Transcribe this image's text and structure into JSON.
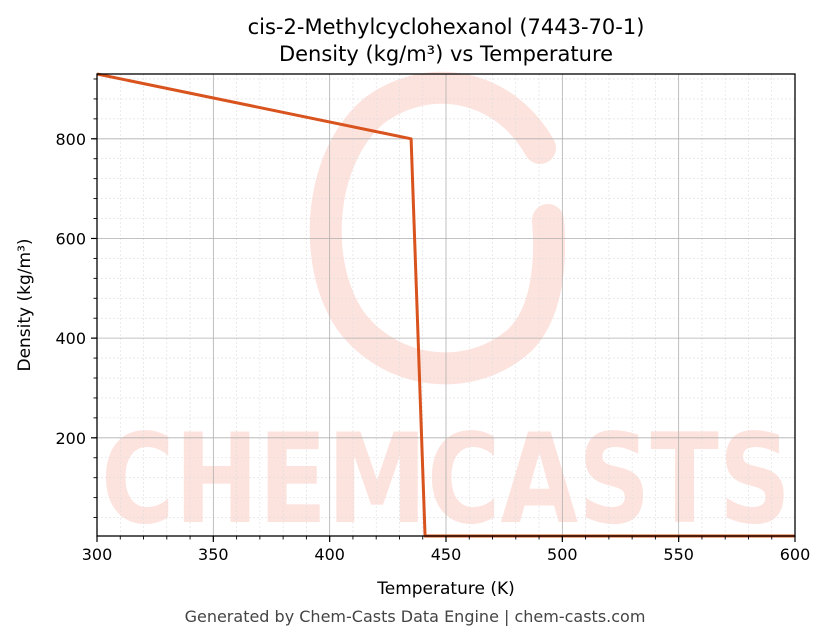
{
  "chart_data": {
    "type": "line",
    "title": "cis-2-Methylcyclohexanol (7443-70-1)",
    "subtitle": "Density (kg/m³) vs Temperature",
    "xlabel": "Temperature (K)",
    "ylabel": "Density (kg/m³)",
    "xlim": [
      300,
      600
    ],
    "ylim": [
      3,
      930
    ],
    "xticks": [
      300,
      350,
      400,
      450,
      500,
      550,
      600
    ],
    "yticks": [
      200,
      400,
      600,
      800
    ],
    "grid": true,
    "legend": "none",
    "series": [
      {
        "color": "#d9531e",
        "x": [
          300,
          435,
          441,
          600
        ],
        "y": [
          930,
          800,
          3,
          3
        ]
      }
    ]
  },
  "watermark": {
    "text": "CHEMCASTS",
    "color": "#fde3de"
  },
  "footer": {
    "text": "Generated by Chem-Casts Data Engine | chem-casts.com"
  }
}
